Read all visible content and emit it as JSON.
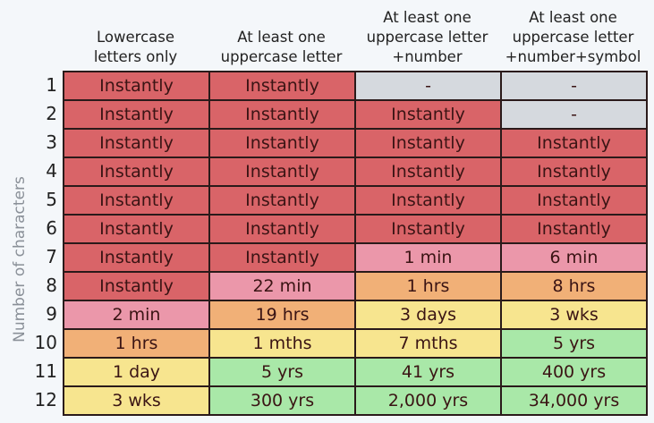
{
  "chart_data": {
    "type": "table",
    "title": "",
    "ylabel": "Number of characters",
    "columns": [
      "Lowercase\nletters only",
      "At least one\nuppercase letter",
      "At least one\nuppercase letter\n+number",
      "At least one\nuppercase letter\n+number+symbol"
    ],
    "rows": [
      {
        "chars": "1",
        "cells": [
          {
            "v": "Instantly",
            "c": "red"
          },
          {
            "v": "Instantly",
            "c": "red"
          },
          {
            "v": "-",
            "c": "grey"
          },
          {
            "v": "-",
            "c": "grey"
          }
        ]
      },
      {
        "chars": "2",
        "cells": [
          {
            "v": "Instantly",
            "c": "red"
          },
          {
            "v": "Instantly",
            "c": "red"
          },
          {
            "v": "Instantly",
            "c": "red"
          },
          {
            "v": "-",
            "c": "grey"
          }
        ]
      },
      {
        "chars": "3",
        "cells": [
          {
            "v": "Instantly",
            "c": "red"
          },
          {
            "v": "Instantly",
            "c": "red"
          },
          {
            "v": "Instantly",
            "c": "red"
          },
          {
            "v": "Instantly",
            "c": "red"
          }
        ]
      },
      {
        "chars": "4",
        "cells": [
          {
            "v": "Instantly",
            "c": "red"
          },
          {
            "v": "Instantly",
            "c": "red"
          },
          {
            "v": "Instantly",
            "c": "red"
          },
          {
            "v": "Instantly",
            "c": "red"
          }
        ]
      },
      {
        "chars": "5",
        "cells": [
          {
            "v": "Instantly",
            "c": "red"
          },
          {
            "v": "Instantly",
            "c": "red"
          },
          {
            "v": "Instantly",
            "c": "red"
          },
          {
            "v": "Instantly",
            "c": "red"
          }
        ]
      },
      {
        "chars": "6",
        "cells": [
          {
            "v": "Instantly",
            "c": "red"
          },
          {
            "v": "Instantly",
            "c": "red"
          },
          {
            "v": "Instantly",
            "c": "red"
          },
          {
            "v": "Instantly",
            "c": "red"
          }
        ]
      },
      {
        "chars": "7",
        "cells": [
          {
            "v": "Instantly",
            "c": "red"
          },
          {
            "v": "Instantly",
            "c": "red"
          },
          {
            "v": "1 min",
            "c": "pink"
          },
          {
            "v": "6 min",
            "c": "pink"
          }
        ]
      },
      {
        "chars": "8",
        "cells": [
          {
            "v": "Instantly",
            "c": "red"
          },
          {
            "v": "22 min",
            "c": "pink"
          },
          {
            "v": "1 hrs",
            "c": "orange"
          },
          {
            "v": "8 hrs",
            "c": "orange"
          }
        ]
      },
      {
        "chars": "9",
        "cells": [
          {
            "v": "2 min",
            "c": "pink"
          },
          {
            "v": "19 hrs",
            "c": "orange"
          },
          {
            "v": "3 days",
            "c": "yellow"
          },
          {
            "v": "3 wks",
            "c": "yellow"
          }
        ]
      },
      {
        "chars": "10",
        "cells": [
          {
            "v": "1 hrs",
            "c": "orange"
          },
          {
            "v": "1 mths",
            "c": "yellow"
          },
          {
            "v": "7 mths",
            "c": "yellow"
          },
          {
            "v": "5 yrs",
            "c": "green"
          }
        ]
      },
      {
        "chars": "11",
        "cells": [
          {
            "v": "1 day",
            "c": "yellow"
          },
          {
            "v": "5 yrs",
            "c": "green"
          },
          {
            "v": "41 yrs",
            "c": "green"
          },
          {
            "v": "400 yrs",
            "c": "green"
          }
        ]
      },
      {
        "chars": "12",
        "cells": [
          {
            "v": "3 wks",
            "c": "yellow"
          },
          {
            "v": "300 yrs",
            "c": "green"
          },
          {
            "v": "2,000 yrs",
            "c": "green"
          },
          {
            "v": "34,000 yrs",
            "c": "green"
          }
        ]
      }
    ],
    "colors": {
      "red": "#d96468",
      "pink": "#eb97aa",
      "orange": "#f1b077",
      "yellow": "#f7e58f",
      "green": "#a9e8a8",
      "grey": "#d5d9de"
    }
  }
}
